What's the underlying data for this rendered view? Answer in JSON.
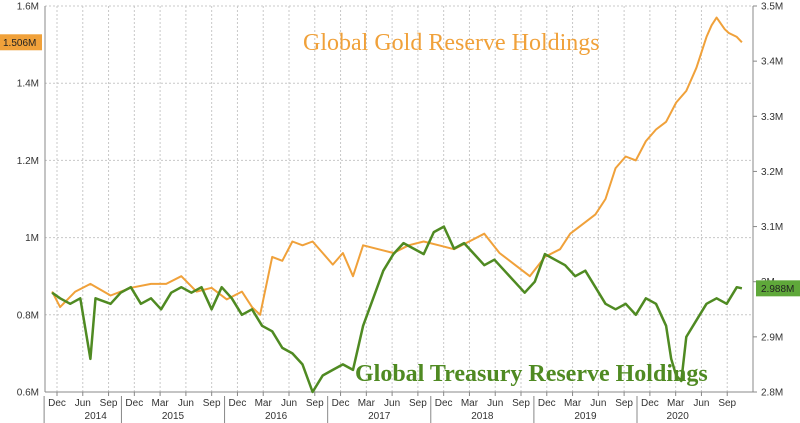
{
  "chart_data": {
    "type": "line",
    "annotations": {
      "gold_title": "Global Gold Reserve Holdings",
      "treasury_title": "Global Treasury Reserve Holdings"
    },
    "colors": {
      "gold": "#f0a13a",
      "treasury": "#4f8a22",
      "grid": "#c8c8c8"
    },
    "grid": true,
    "y_left": {
      "ticks": [
        "0.6M",
        "0.8M",
        "1M",
        "1.2M",
        "1.4M",
        "1.6M"
      ],
      "range": [
        0.6,
        1.6
      ],
      "current_label": "1.506M"
    },
    "y_right": {
      "ticks": [
        "2.8M",
        "2.9M",
        "3M",
        "3.1M",
        "3.2M",
        "3.3M",
        "3.4M",
        "3.5M"
      ],
      "range": [
        2.8,
        3.5
      ],
      "current_label": "2.988M"
    },
    "x_ticks": [
      "Dec",
      "Jun",
      "Sep",
      "Dec",
      "Mar",
      "Jun",
      "Sep",
      "Dec",
      "Mar",
      "Jun",
      "Sep",
      "Dec",
      "Mar",
      "Jun",
      "Sep",
      "Dec",
      "Mar",
      "Jun",
      "Sep",
      "Dec",
      "Mar",
      "Jun",
      "Sep",
      "Dec",
      "Mar",
      "Jun",
      "Sep"
    ],
    "years": [
      "2014",
      "2015",
      "2016",
      "2017",
      "2018",
      "2019",
      "2020"
    ],
    "series": [
      {
        "axis": "left",
        "x": [
          2013.92,
          2014.0,
          2014.15,
          2014.3,
          2014.5,
          2014.7,
          2014.9,
          2015.05,
          2015.2,
          2015.35,
          2015.5,
          2015.65,
          2015.8,
          2015.9,
          2015.98,
          2016.1,
          2016.2,
          2016.3,
          2016.4,
          2016.5,
          2016.6,
          2016.7,
          2016.8,
          2016.9,
          2017.0,
          2017.15,
          2017.3,
          2017.45,
          2017.6,
          2017.75,
          2017.9,
          2018.05,
          2018.2,
          2018.35,
          2018.5,
          2018.65,
          2018.8,
          2018.95,
          2019.05,
          2019.2,
          2019.3,
          2019.4,
          2019.5,
          2019.6,
          2019.7,
          2019.8,
          2019.9,
          2020.0,
          2020.1,
          2020.2,
          2020.3,
          2020.4,
          2020.45,
          2020.5,
          2020.58,
          2020.62,
          2020.7,
          2020.75
        ],
        "values": [
          0.86,
          0.82,
          0.86,
          0.88,
          0.85,
          0.87,
          0.88,
          0.88,
          0.9,
          0.86,
          0.87,
          0.84,
          0.86,
          0.82,
          0.8,
          0.95,
          0.94,
          0.99,
          0.98,
          0.99,
          0.96,
          0.93,
          0.96,
          0.9,
          0.98,
          0.97,
          0.96,
          0.98,
          0.99,
          0.98,
          0.97,
          0.99,
          1.01,
          0.96,
          0.93,
          0.9,
          0.95,
          0.97,
          1.01,
          1.04,
          1.06,
          1.1,
          1.18,
          1.21,
          1.2,
          1.25,
          1.28,
          1.3,
          1.35,
          1.38,
          1.44,
          1.52,
          1.55,
          1.57,
          1.54,
          1.53,
          1.52,
          1.506
        ]
      },
      {
        "axis": "right",
        "x": [
          2013.92,
          2014.0,
          2014.1,
          2014.2,
          2014.3,
          2014.35,
          2014.5,
          2014.6,
          2014.7,
          2014.8,
          2014.9,
          2015.0,
          2015.1,
          2015.2,
          2015.3,
          2015.4,
          2015.5,
          2015.6,
          2015.7,
          2015.8,
          2015.9,
          2016.0,
          2016.1,
          2016.2,
          2016.3,
          2016.4,
          2016.5,
          2016.6,
          2016.7,
          2016.8,
          2016.9,
          2017.0,
          2017.1,
          2017.2,
          2017.3,
          2017.4,
          2017.5,
          2017.6,
          2017.7,
          2017.8,
          2017.9,
          2018.0,
          2018.1,
          2018.2,
          2018.3,
          2018.4,
          2018.5,
          2018.6,
          2018.7,
          2018.8,
          2018.9,
          2019.0,
          2019.1,
          2019.2,
          2019.3,
          2019.4,
          2019.5,
          2019.6,
          2019.7,
          2019.8,
          2019.9,
          2020.0,
          2020.05,
          2020.1,
          2020.15,
          2020.2,
          2020.3,
          2020.4,
          2020.5,
          2020.6,
          2020.7,
          2020.75
        ],
        "values": [
          2.98,
          2.97,
          2.96,
          2.97,
          2.86,
          2.97,
          2.96,
          2.98,
          2.99,
          2.96,
          2.97,
          2.95,
          2.98,
          2.99,
          2.98,
          2.99,
          2.95,
          2.99,
          2.97,
          2.94,
          2.95,
          2.92,
          2.91,
          2.88,
          2.87,
          2.85,
          2.8,
          2.83,
          2.84,
          2.85,
          2.84,
          2.92,
          2.97,
          3.02,
          3.05,
          3.07,
          3.06,
          3.05,
          3.09,
          3.1,
          3.06,
          3.07,
          3.05,
          3.03,
          3.04,
          3.02,
          3.0,
          2.98,
          3.0,
          3.05,
          3.04,
          3.03,
          3.01,
          3.02,
          2.99,
          2.96,
          2.95,
          2.96,
          2.94,
          2.97,
          2.96,
          2.92,
          2.86,
          2.83,
          2.82,
          2.9,
          2.93,
          2.96,
          2.97,
          2.96,
          2.99,
          2.988
        ]
      }
    ]
  }
}
